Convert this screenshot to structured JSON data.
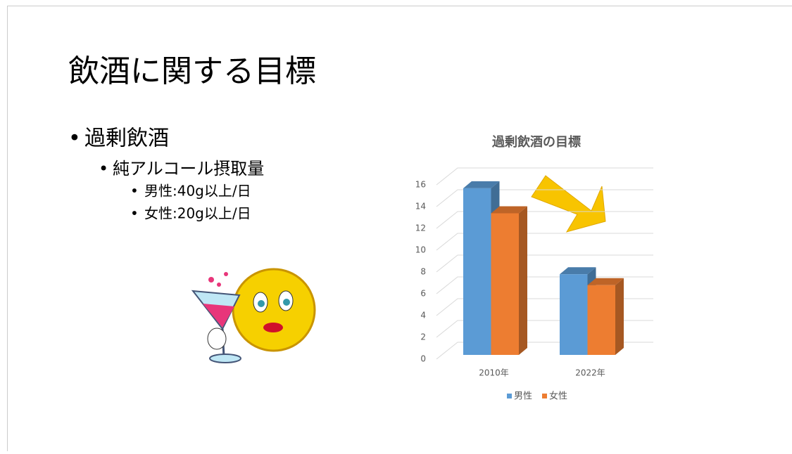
{
  "slide": {
    "title": "飲酒に関する目標",
    "bullets": [
      "過剰飲酒",
      "純アルコール摂取量",
      "男性:40g以上/日",
      "女性:20g以上/日"
    ]
  },
  "chart_data": {
    "type": "bar3d",
    "title": "過剰飲酒の目標",
    "categories": [
      "2010年",
      "2022年"
    ],
    "series": [
      {
        "name": "男性",
        "color": "#5b9bd5",
        "values": [
          15.3,
          7.4
        ]
      },
      {
        "name": "女性",
        "color": "#ed7d31",
        "values": [
          13.0,
          6.4
        ]
      }
    ],
    "ylim": [
      0,
      16
    ],
    "yticks": [
      0,
      2,
      4,
      6,
      8,
      10,
      12,
      14,
      16
    ],
    "grid": true,
    "legend": "bottom"
  }
}
